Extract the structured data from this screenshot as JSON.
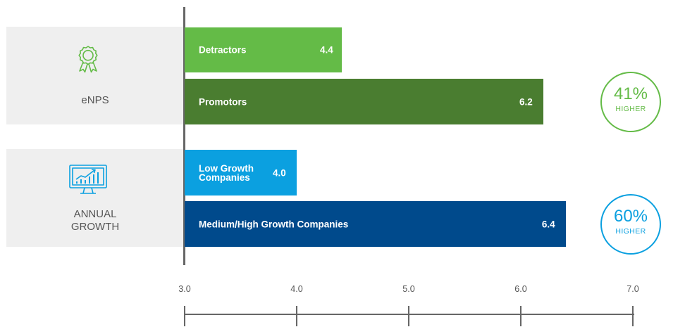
{
  "chart_data": {
    "type": "bar",
    "orientation": "horizontal",
    "xlim": [
      3.0,
      7.0
    ],
    "ticks": [
      "3.0",
      "4.0",
      "5.0",
      "6.0",
      "7.0"
    ],
    "groups": [
      {
        "label": "eNPS",
        "icon": "award-ribbon-icon",
        "bars": [
          {
            "label": "Detractors",
            "value": 4.4,
            "value_label": "4.4",
            "color": "#64bb47"
          },
          {
            "label": "Promotors",
            "value": 6.2,
            "value_label": "6.2",
            "color": "#4a7d30"
          }
        ],
        "badge": {
          "percent": "41%",
          "text": "HIGHER",
          "color": "#64bb47"
        }
      },
      {
        "label": "ANNUAL\nGROWTH",
        "icon": "growth-chart-monitor-icon",
        "bars": [
          {
            "label": "Low Growth\nCompanies",
            "value": 4.0,
            "value_label": "4.0",
            "color": "#0ba0e0"
          },
          {
            "label": "Medium/High Growth Companies",
            "value": 6.4,
            "value_label": "6.4",
            "color": "#004a8c"
          }
        ],
        "badge": {
          "percent": "60%",
          "text": "HIGHER",
          "color": "#0ba0e0"
        }
      }
    ]
  }
}
